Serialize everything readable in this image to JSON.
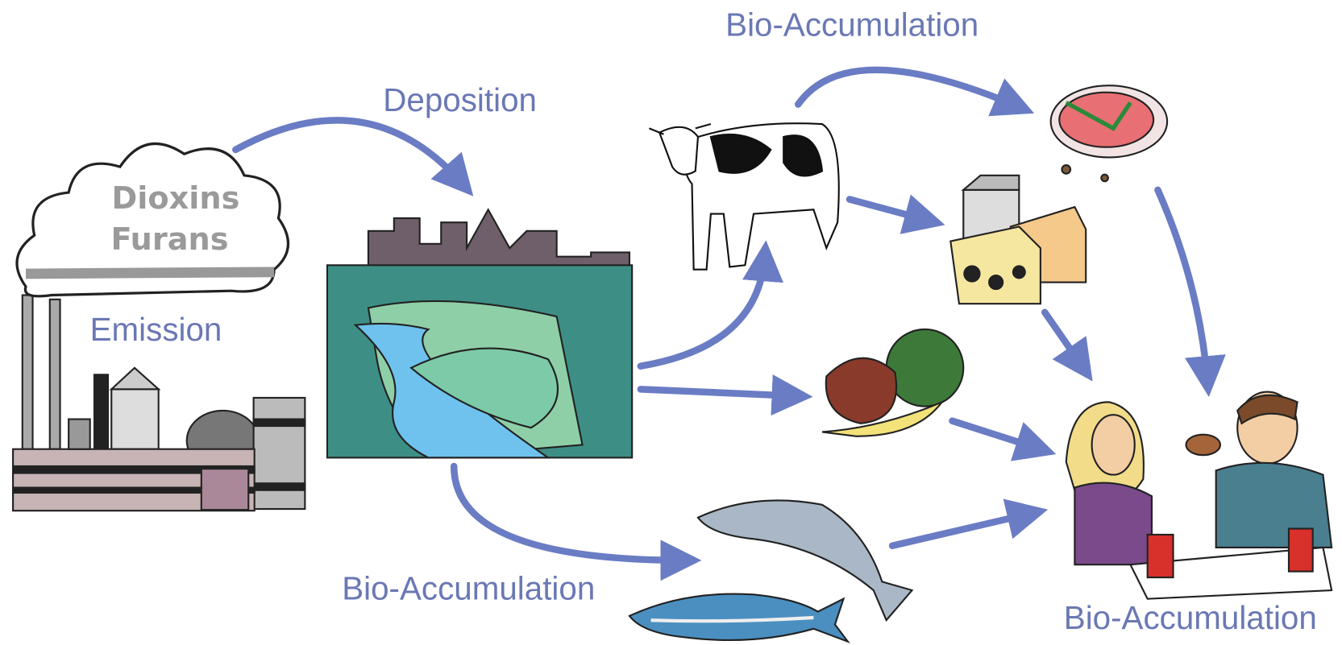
{
  "cloud": {
    "lines": [
      "Dioxins",
      "Furans"
    ]
  },
  "labels": {
    "emission": "Emission",
    "deposition": "Deposition",
    "bio_top": "Bio-Accumulation",
    "bio_bottom_left": "Bio-Accumulation",
    "bio_bottom_right": "Bio-Accumulation"
  }
}
